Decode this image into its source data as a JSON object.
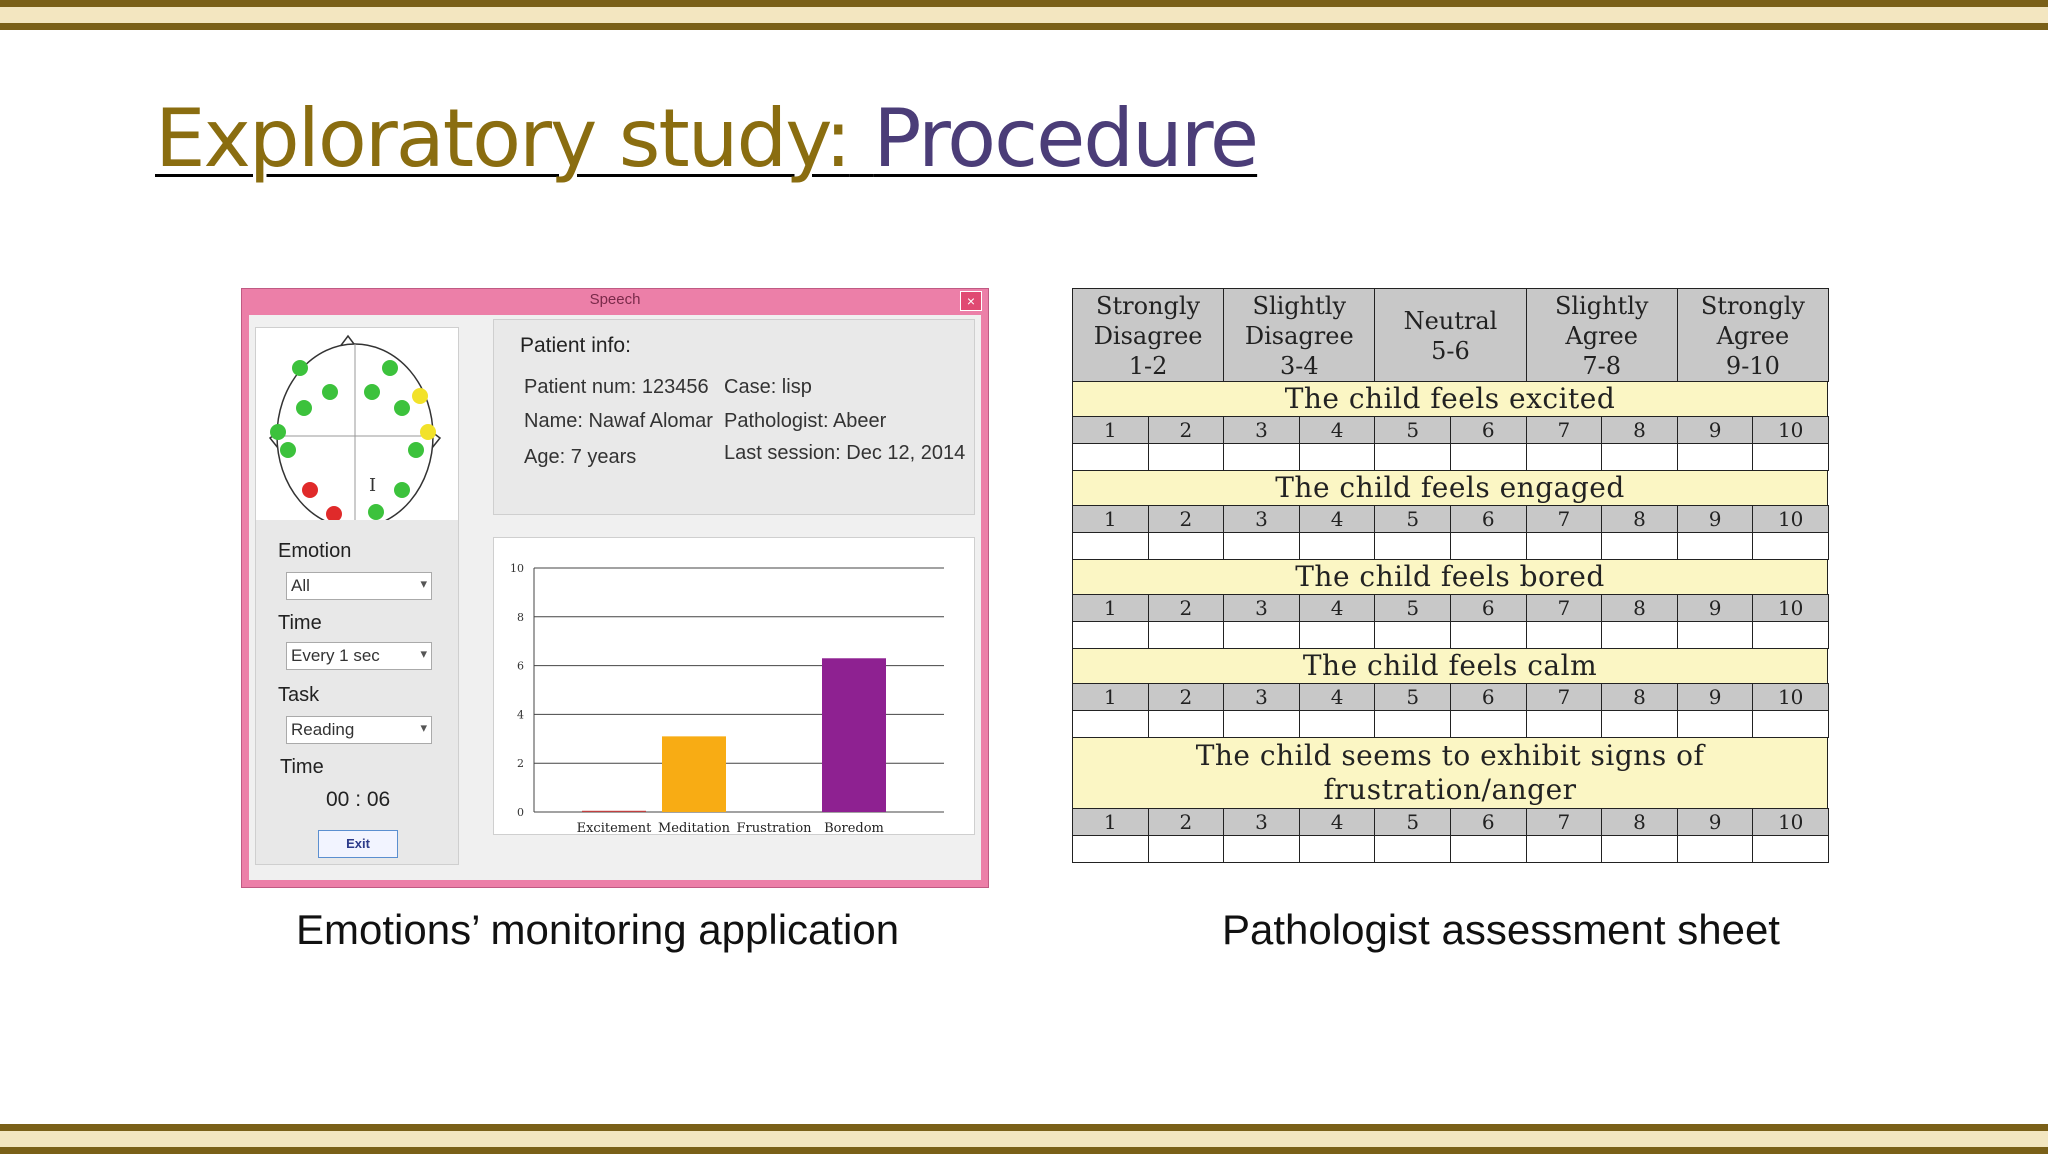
{
  "slide": {
    "title_part1": "Exploratory study:",
    "title_part2": "Procedure",
    "caption_left": "Emotions’ monitoring application",
    "caption_right": "Pathologist assessment sheet"
  },
  "app": {
    "window_title": "Speech",
    "close_glyph": "×",
    "emotion_label": "Emotion",
    "emotion_value": "All",
    "time_label": "Time",
    "time_value": "Every 1 sec",
    "task_label": "Task",
    "task_value": "Reading",
    "timer_label": "Time",
    "timer_value": "00 : 06",
    "exit_label": "Exit",
    "patient_info": {
      "heading": "Patient info:",
      "num": "Patient num: 123456",
      "name": "Name: Nawaf Alomar",
      "age": "Age: 7 years",
      "case": "Case: lisp",
      "pathologist": "Pathologist: Abeer",
      "last_session": "Last session: Dec 12, 2014"
    },
    "electrode_colors": {
      "green": "#3cc23c",
      "yellow": "#f2e22a",
      "red": "#e02a2a"
    }
  },
  "chart_data": {
    "type": "bar",
    "categories": [
      "Excitement",
      "Meditation",
      "Frustration",
      "Boredom"
    ],
    "values": [
      0.05,
      3.1,
      0,
      6.3
    ],
    "colors": [
      "#c04040",
      "#f8ac14",
      "#999999",
      "#8e2191"
    ],
    "ylim": [
      0,
      10
    ],
    "yticks": [
      "0",
      "2",
      "4",
      "6",
      "8",
      "10"
    ],
    "grid": true
  },
  "sheet": {
    "headers": [
      [
        "Strongly",
        "Disagree",
        "1-2"
      ],
      [
        "Slightly",
        "Disagree",
        "3-4"
      ],
      [
        "Neutral",
        "5-6"
      ],
      [
        "Slightly",
        "Agree",
        "7-8"
      ],
      [
        "Strongly",
        "Agree",
        "9-10"
      ]
    ],
    "numbers": [
      "1",
      "2",
      "3",
      "4",
      "5",
      "6",
      "7",
      "8",
      "9",
      "10"
    ],
    "questions": [
      [
        "The child feels excited"
      ],
      [
        "The child feels engaged"
      ],
      [
        "The child feels bored"
      ],
      [
        "The child feels calm"
      ],
      [
        "The child seems to exhibit signs of",
        "frustration/anger"
      ]
    ]
  }
}
